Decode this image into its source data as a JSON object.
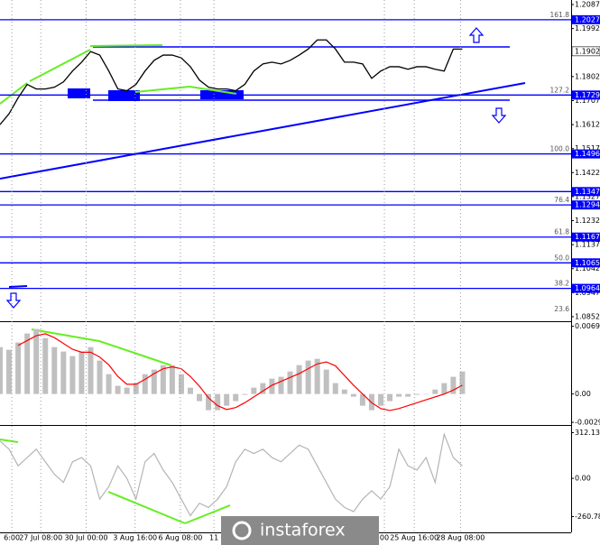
{
  "chart_data": [
    {
      "type": "line",
      "color": "#000000",
      "values": [
        1.1612,
        1.1655,
        1.1718,
        1.1771,
        1.1753,
        1.1753,
        1.176,
        1.1781,
        1.1824,
        1.1859,
        1.1901,
        1.1887,
        1.1824,
        1.1753,
        1.1746,
        1.1771,
        1.1824,
        1.1866,
        1.1887,
        1.1887,
        1.1876,
        1.1841,
        1.1788,
        1.176,
        1.1753,
        1.1753,
        1.1746,
        1.1771,
        1.1824,
        1.1852,
        1.1859,
        1.1852,
        1.1866,
        1.1887,
        1.1911,
        1.1947,
        1.1947,
        1.1911,
        1.1859,
        1.1859,
        1.1852,
        1.1795,
        1.1824,
        1.1841,
        1.1841,
        1.1831,
        1.1841,
        1.1841,
        1.1831,
        1.1824,
        1.1911,
        1.1911
      ],
      "xlim": [
        0,
        63
      ],
      "ylim": [
        1.0834,
        1.2105
      ],
      "yticks": [
        1.2087,
        1.1992,
        1.1802,
        1.1707,
        1.1612,
        1.1517,
        1.1422,
        1.1327,
        1.1232,
        1.1137,
        1.1042,
        1.0947,
        1.0852
      ],
      "levels": [
        1.2027,
        1.1729,
        1.1496,
        1.1347,
        1.1294,
        1.1167,
        1.1065,
        1.0964
      ],
      "level_color": "#0000ff",
      "fib_labels": [
        {
          "value": 1.2027,
          "label": "161.8"
        },
        {
          "value": 1.1729,
          "label": "127.2"
        },
        {
          "value": 1.1496,
          "label": "100.0"
        },
        {
          "value": 1.1294,
          "label": "76.4"
        },
        {
          "value": 1.1167,
          "label": "61.8"
        },
        {
          "value": 1.1065,
          "label": "50.0"
        },
        {
          "value": 1.0964,
          "label": "38.2"
        },
        {
          "value": 1.0862,
          "label": "23.6"
        }
      ],
      "current_price": 1.1902
    },
    {
      "type": "combo",
      "xlim": [
        0,
        63
      ],
      "ylim": [
        -0.0031,
        0.0074
      ],
      "yticks": [
        0.00697,
        {
          "value": 0,
          "label": "0.00"
        },
        -0.00292
      ],
      "series": [
        {
          "type": "bar",
          "color": "#c0c0c0",
          "values": [
            0.00483,
            0.00455,
            0.0053,
            0.00623,
            0.00669,
            0.00576,
            0.00483,
            0.00437,
            0.0039,
            0.00437,
            0.00483,
            0.00344,
            0.00204,
            0.00084,
            0.00065,
            0.00112,
            0.00204,
            0.00251,
            0.00297,
            0.00297,
            0.00204,
            0.00065,
            -0.00074,
            -0.00167,
            -0.00167,
            -0.00121,
            -0.00074,
            -9e-05,
            0.00065,
            0.00112,
            0.00158,
            0.00177,
            0.00232,
            0.00297,
            0.00344,
            0.00362,
            0.00251,
            0.00112,
            0.00046,
            -0.00028,
            -0.00121,
            -0.00167,
            -0.00121,
            -0.00074,
            -0.00028,
            -0.00028,
            -9e-05,
            0,
            0.00046,
            0.00112,
            0.00177,
            0.00232
          ]
        },
        {
          "type": "line",
          "color": "#ff0000",
          "values": [
            null,
            null,
            0.005,
            0.0055,
            0.006,
            0.0062,
            0.0058,
            0.0052,
            0.0046,
            0.0043,
            0.0043,
            0.0038,
            0.003,
            0.0018,
            0.001,
            0.001,
            0.0015,
            0.0021,
            0.0026,
            0.0028,
            0.0026,
            0.0018,
            0.0008,
            -0.0004,
            -0.0012,
            -0.0016,
            -0.0014,
            -0.0009,
            -0.0003,
            0.0003,
            0.0009,
            0.0013,
            0.0017,
            0.0021,
            0.0026,
            0.0031,
            0.0033,
            0.0029,
            0.0019,
            0.0009,
            0,
            -0.0009,
            -0.0015,
            -0.0017,
            -0.0015,
            -0.0012,
            -0.0009,
            -0.0006,
            -0.0003,
            0,
            0.0004,
            0.0009
          ]
        }
      ]
    },
    {
      "type": "line",
      "color": "#b4b4b4",
      "values": [
        255,
        199,
        85,
        142,
        199,
        113,
        28,
        -28,
        113,
        142,
        85,
        -142,
        -57,
        85,
        0,
        -142,
        113,
        170,
        57,
        -28,
        -142,
        -255,
        -170,
        -199,
        -142,
        -57,
        113,
        199,
        170,
        199,
        142,
        113,
        170,
        227,
        199,
        85,
        -28,
        -142,
        -199,
        -227,
        -142,
        -85,
        -142,
        -57,
        199,
        85,
        57,
        142,
        -28,
        301,
        142,
        85
      ],
      "xlim": [
        0,
        63
      ],
      "ylim": [
        -369,
        352
      ],
      "yticks": [
        312.1363,
        {
          "value": 0,
          "label": "0.00"
        },
        -260.782
      ],
      "xticks": [
        {
          "value": 1.3,
          "label": "6:00"
        },
        {
          "value": 4.5,
          "label": "27 Jul 08:00"
        },
        {
          "value": 9.5,
          "label": "30 Jul 00:00"
        },
        {
          "value": 14.9,
          "label": "3 Aug 16:00"
        },
        {
          "value": 19.9,
          "label": "6 Aug 08:00"
        },
        {
          "value": 23.6,
          "label": "11"
        },
        {
          "value": 42.4,
          "label": "00"
        },
        {
          "value": 45.7,
          "label": "25 Aug 16:00"
        },
        {
          "value": 50.8,
          "label": "28 Aug 08:00"
        }
      ],
      "watermark": "instaforex"
    }
  ]
}
